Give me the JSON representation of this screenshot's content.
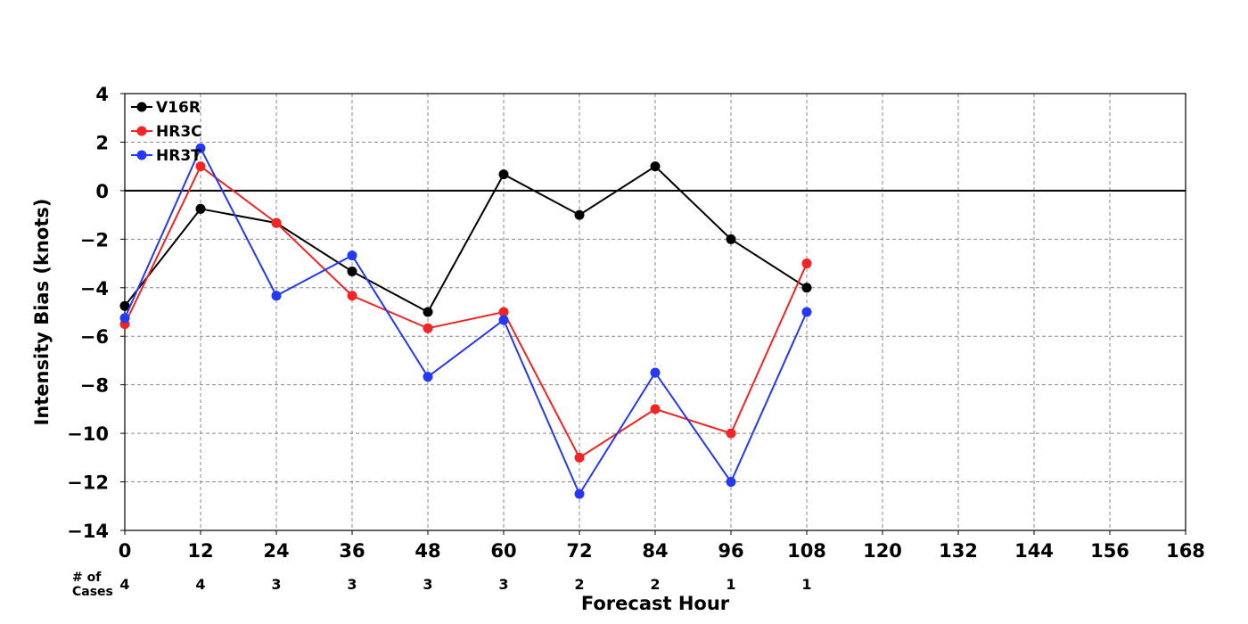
{
  "chart_data": {
    "type": "line",
    "title": "",
    "xlabel": "Forecast Hour",
    "ylabel": "Intensity Bias (knots)",
    "xlim": [
      0,
      168
    ],
    "ylim": [
      -14,
      4
    ],
    "x_ticks": [
      "0",
      "12",
      "24",
      "36",
      "48",
      "60",
      "72",
      "84",
      "96",
      "108",
      "120",
      "132",
      "144",
      "156",
      "168"
    ],
    "y_ticks": [
      "4",
      "2",
      "0",
      "−2",
      "−4",
      "−6",
      "−8",
      "−10",
      "−12",
      "−14"
    ],
    "grid": true,
    "legend": "top-left",
    "zero_line": true,
    "cases_label": [
      "# of",
      "Cases"
    ],
    "cases": [
      "4",
      "4",
      "3",
      "3",
      "3",
      "3",
      "2",
      "2",
      "1",
      "1"
    ],
    "series": [
      {
        "name": "V16R",
        "color": "#000000",
        "x": [
          0,
          12,
          24,
          36,
          48,
          60,
          72,
          84,
          96,
          108
        ],
        "y": [
          -4.75,
          -0.75,
          -1.33,
          -3.33,
          -5.0,
          0.67,
          -1.0,
          1.0,
          -2.0,
          -4.0
        ]
      },
      {
        "name": "HR3C",
        "color": "#f22424",
        "x": [
          0,
          12,
          24,
          36,
          48,
          60,
          72,
          84,
          96,
          108
        ],
        "y": [
          -5.5,
          1.0,
          -1.33,
          -4.33,
          -5.67,
          -5.0,
          -11.0,
          -9.0,
          -10.0,
          -3.0
        ]
      },
      {
        "name": "HR3T",
        "color": "#2538f5",
        "x": [
          0,
          12,
          24,
          36,
          48,
          60,
          72,
          84,
          96,
          108
        ],
        "y": [
          -5.25,
          1.75,
          -4.33,
          -2.67,
          -7.67,
          -5.33,
          -12.5,
          -7.5,
          -12.0,
          -5.0
        ]
      }
    ]
  }
}
